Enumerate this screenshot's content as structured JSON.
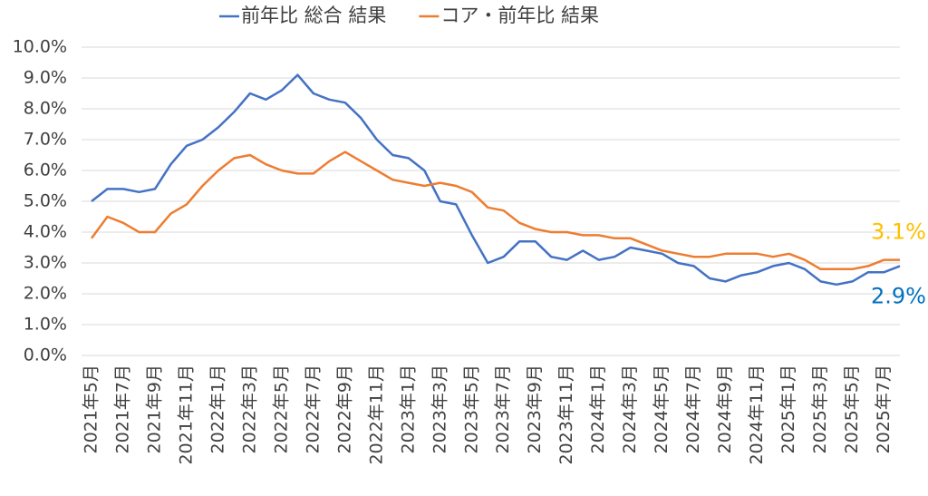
{
  "chart_data": {
    "type": "line",
    "categories": [
      "2021年5月",
      null,
      "2021年7月",
      null,
      "2021年9月",
      null,
      "2021年11月",
      null,
      "2022年1月",
      null,
      "2022年3月",
      null,
      "2022年5月",
      null,
      "2022年7月",
      null,
      "2022年9月",
      null,
      "2022年11月",
      null,
      "2023年1月",
      null,
      "2023年3月",
      null,
      "2023年5月",
      null,
      "2023年7月",
      null,
      "2023年9月",
      null,
      "2023年11月",
      null,
      "2024年1月",
      null,
      "2024年3月",
      null,
      "2024年5月",
      null,
      "2024年7月",
      null,
      "2024年9月",
      null,
      "2024年11月",
      null,
      "2025年1月",
      null,
      "2025年3月",
      null,
      "2025年5月",
      null,
      "2025年7月",
      null
    ],
    "series": [
      {
        "name": "前年比 総合 結果",
        "color": "#4472c4",
        "end_label": "2.9%",
        "end_label_color": "#0070c0",
        "values": [
          5.0,
          5.4,
          5.4,
          5.3,
          5.4,
          6.2,
          6.8,
          7.0,
          7.4,
          7.9,
          8.5,
          8.3,
          8.6,
          9.1,
          8.5,
          8.3,
          8.2,
          7.7,
          7.0,
          6.5,
          6.4,
          6.0,
          5.0,
          4.9,
          3.9,
          3.0,
          3.2,
          3.7,
          3.7,
          3.2,
          3.1,
          3.4,
          3.1,
          3.2,
          3.5,
          3.4,
          3.3,
          3.0,
          2.9,
          2.5,
          2.4,
          2.6,
          2.7,
          2.9,
          3.0,
          2.8,
          2.4,
          2.3,
          2.4,
          2.7,
          2.7,
          2.9
        ]
      },
      {
        "name": "コア・前年比 結果",
        "color": "#ed7d31",
        "end_label": "3.1%",
        "end_label_color": "#ffc000",
        "values": [
          3.8,
          4.5,
          4.3,
          4.0,
          4.0,
          4.6,
          4.9,
          5.5,
          6.0,
          6.4,
          6.5,
          6.2,
          6.0,
          5.9,
          5.9,
          6.3,
          6.6,
          6.3,
          6.0,
          5.7,
          5.6,
          5.5,
          5.6,
          5.5,
          5.3,
          4.8,
          4.7,
          4.3,
          4.1,
          4.0,
          4.0,
          3.9,
          3.9,
          3.8,
          3.8,
          3.6,
          3.4,
          3.3,
          3.2,
          3.2,
          3.3,
          3.3,
          3.3,
          3.2,
          3.3,
          3.1,
          2.8,
          2.8,
          2.8,
          2.9,
          3.1,
          3.1
        ]
      }
    ],
    "ylim": [
      0,
      10
    ],
    "yticks": [
      {
        "value": 0,
        "label": "0.0%"
      },
      {
        "value": 1,
        "label": "1.0%"
      },
      {
        "value": 2,
        "label": "2.0%"
      },
      {
        "value": 3,
        "label": "3.0%"
      },
      {
        "value": 4,
        "label": "4.0%"
      },
      {
        "value": 5,
        "label": "5.0%"
      },
      {
        "value": 6,
        "label": "6.0%"
      },
      {
        "value": 7,
        "label": "7.0%"
      },
      {
        "value": 8,
        "label": "8.0%"
      },
      {
        "value": 9,
        "label": "9.0%"
      },
      {
        "value": 10,
        "label": "10.0%"
      }
    ],
    "grid": true,
    "legend": "top"
  }
}
